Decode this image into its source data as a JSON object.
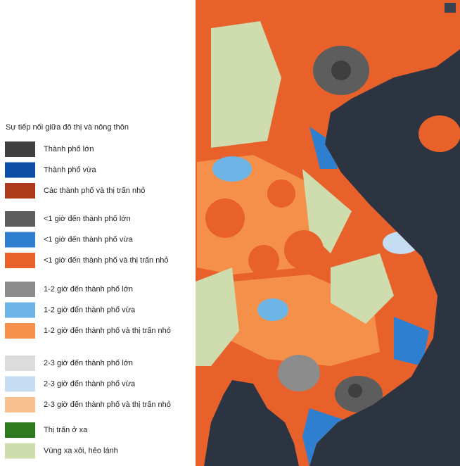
{
  "legend": {
    "title": "Sự tiếp nối giữa đô thị và nông thôn",
    "groups": [
      [
        {
          "label": "Thành phố lớn",
          "color": "#3f3f3f"
        },
        {
          "label": "Thành phố vừa",
          "color": "#0c4ea6"
        },
        {
          "label": "Các thành phố và thị trấn nhỏ",
          "color": "#ad3a1a"
        }
      ],
      [
        {
          "label": "<1 giờ đến thành phố lớn",
          "color": "#5d5d5d"
        },
        {
          "label": "<1 giờ đến thành phố vừa",
          "color": "#2f7fd0"
        },
        {
          "label": "<1 giờ đến thành phố và thị trấn nhỏ",
          "color": "#e8612b"
        }
      ],
      [
        {
          "label": "1-2 giờ đến thành phố lớn",
          "color": "#8c8c8c"
        },
        {
          "label": "1-2 giờ đến thành phố vừa",
          "color": "#6cb4e6"
        },
        {
          "label": "1-2 giờ đến thành phố và thị trấn nhỏ",
          "color": "#f5904a"
        }
      ],
      [
        {
          "label": "2-3 giờ đến thành phố lớn",
          "color": "#dcdcdc"
        },
        {
          "label": "2-3 giờ đến thành phố vừa",
          "color": "#c4ddf2"
        },
        {
          "label": "2-3 giờ đến thành phố và thị trấn nhỏ",
          "color": "#f9c18f"
        }
      ],
      [
        {
          "label": "Thị trấn ở xa",
          "color": "#2f7a1f"
        },
        {
          "label": "Vùng xa xôi, hẻo lánh",
          "color": "#cedcae"
        }
      ]
    ]
  }
}
